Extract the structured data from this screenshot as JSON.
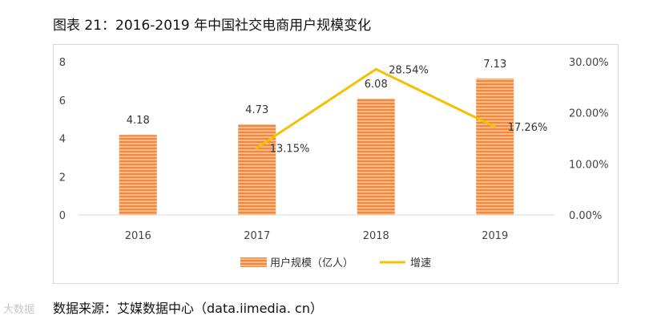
{
  "figure": {
    "title": "图表 21：2016-2019 年中国社交电商用户规模变化",
    "source": "数据来源：艾媒数据中心（data.iimedia. cn）",
    "watermark": "大数据"
  },
  "colors": {
    "bar": "#f0893e",
    "bar_stripe": "#fbd7b8",
    "line": "#f5c000",
    "axis": "#d9d9d9",
    "tick_text": "#444444"
  },
  "chart_data": {
    "type": "bar",
    "categories": [
      "2016",
      "2017",
      "2018",
      "2019"
    ],
    "series": [
      {
        "name": "用户规模（亿人）",
        "type": "bar",
        "axis": "left",
        "values": [
          4.18,
          4.73,
          6.08,
          7.13
        ],
        "labels": [
          "4.18",
          "4.73",
          "6.08",
          "7.13"
        ]
      },
      {
        "name": "增速",
        "type": "line",
        "axis": "right",
        "values": [
          null,
          13.15,
          28.54,
          17.26
        ],
        "labels": [
          "",
          "13.15%",
          "28.54%",
          "17.26%"
        ]
      }
    ],
    "y_left": {
      "min": 0,
      "max": 8,
      "ticks": [
        "0",
        "2",
        "4",
        "6",
        "8"
      ]
    },
    "y_right": {
      "min": 0,
      "max": 30,
      "ticks": [
        "0.00%",
        "10.00%",
        "20.00%",
        "30.00%"
      ]
    },
    "legend": [
      "用户规模（亿人）",
      "增速"
    ],
    "legend_position": "bottom"
  }
}
